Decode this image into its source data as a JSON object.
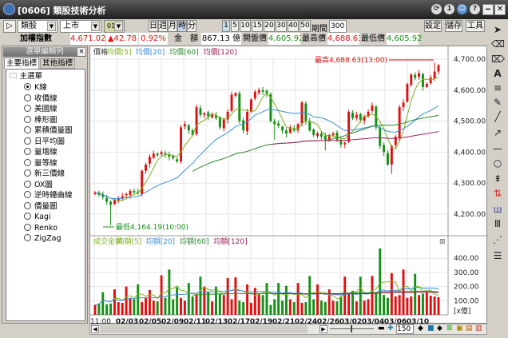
{
  "window": {
    "title": "[0606] 類股技術分析",
    "buttons": [
      "⟳",
      "1",
      "☺",
      "?"
    ]
  },
  "toolbar": {
    "category": "類股",
    "market": "上市",
    "index_code": "0101",
    "period_buttons": [
      "日",
      "週",
      "月",
      "時",
      "分"
    ],
    "active_period": "時",
    "interval_buttons": [
      "1",
      "5",
      "10",
      "15",
      "20",
      "30",
      "40",
      "50"
    ],
    "active_interval": "1",
    "period_label": "期間",
    "period_value": "300",
    "settings": "設定",
    "save": "儲存",
    "tools": "工具"
  },
  "quote": {
    "name": "加權指數",
    "price": "4,671.02",
    "change": "▲42.78",
    "pct": "0.92%",
    "amount_label": "金　額",
    "amount": "867.13 億",
    "open_label": "開盤價",
    "open": "4,605.92",
    "high_label": "最高價",
    "high": "4,688.63",
    "low_label": "最低價",
    "low": "4,605.92"
  },
  "left_panel": {
    "title": "選單編輯列",
    "close": "✕",
    "tabs": [
      "主要指標",
      "其他指標"
    ],
    "root": "主選單",
    "items": [
      "K線",
      "收價線",
      "美國線",
      "棒形圖",
      "累積價量圖",
      "日平均圖",
      "量增線",
      "量等線",
      "新三價線",
      "OX圖",
      "逆時鐘曲線",
      "價量圖",
      "Kagi",
      "Renko",
      "ZigZag"
    ],
    "selected": "K線"
  },
  "colors": {
    "up": "#e01010",
    "down": "#169016",
    "ma5": "#7fb21f",
    "ma20": "#3a8fd8",
    "ma60": "#2a8a2a",
    "ma120": "#a02060"
  },
  "chart_data": [
    {
      "type": "candlestick",
      "legend": [
        "價格",
        "均價[5]",
        "均價[20]",
        "均價[60]",
        "均價[120]"
      ],
      "ylim": [
        4130,
        4740
      ],
      "yticks": [
        "4,700.00",
        "4,600.00",
        "4,500.00",
        "4,400.00",
        "4,300.00",
        "4,200.00"
      ],
      "ytick_values": [
        4700,
        4600,
        4500,
        4400,
        4300,
        4200
      ],
      "annotations": {
        "high": "最高4,688.63(13:00)",
        "low": "最低4,164.19(10:00)"
      },
      "close": [
        4270,
        4262,
        4255,
        4240,
        4230,
        4245,
        4250,
        4258,
        4265,
        4275,
        4270,
        4268,
        4340,
        4360,
        4385,
        4395,
        4390,
        4400,
        4392,
        4385,
        4380,
        4370,
        4480,
        4490,
        4470,
        4455,
        4545,
        4520,
        4525,
        4515,
        4520,
        4510,
        4480,
        4505,
        4530,
        4585,
        4590,
        4500,
        4470,
        4530,
        4570,
        4595,
        4600,
        4595,
        4590,
        4500,
        4490,
        4485,
        4470,
        4460,
        4480,
        4470,
        4490,
        4560,
        4500,
        4470,
        4455,
        4460,
        4450,
        4440,
        4455,
        4460,
        4440,
        4425,
        4430,
        4530,
        4510,
        4520,
        4505,
        4515,
        4530,
        4550,
        4480,
        4420,
        4400,
        4360,
        4420,
        4450,
        4545,
        4560,
        4620,
        4650,
        4640,
        4655,
        4610,
        4620,
        4640,
        4660,
        4680
      ]
    },
    {
      "type": "bar",
      "legend": [
        "成交金額",
        "均額[5]",
        "均額[20]",
        "均額[60]",
        "均額[120]"
      ],
      "ylim": [
        0,
        450
      ],
      "yticks": [
        "400.00",
        "300.00",
        "200.00",
        "100.00"
      ],
      "ytick_values": [
        400,
        300,
        200,
        100
      ],
      "unit": "[x億]",
      "values": [
        70,
        80,
        160,
        75,
        80,
        180,
        90,
        85,
        200,
        120,
        110,
        215,
        90,
        120,
        175,
        100,
        95,
        280,
        120,
        320,
        110,
        195,
        120,
        100,
        225,
        130,
        140,
        270,
        200,
        160,
        95,
        200,
        150,
        140,
        260,
        110,
        265,
        100,
        90,
        215,
        85,
        190,
        150,
        140,
        225,
        70,
        110,
        225,
        100,
        205,
        110,
        90,
        225,
        85,
        90,
        275,
        110,
        215,
        100,
        90,
        180,
        100,
        95,
        130,
        270,
        150,
        170,
        95,
        270,
        100,
        110,
        275,
        160,
        470,
        140,
        120,
        295,
        130,
        140,
        320,
        120,
        130,
        290,
        140,
        150,
        160,
        135,
        130,
        125
      ],
      "xticks": [
        "11:00",
        "02/03",
        "02/05",
        "02/09",
        "02/11",
        "02/13",
        "02/17",
        "02/19",
        "02/21",
        "02/24",
        "02/26",
        "03/02",
        "03/04",
        "03/06",
        "03/10"
      ]
    }
  ],
  "zoom": {
    "value": "150"
  }
}
